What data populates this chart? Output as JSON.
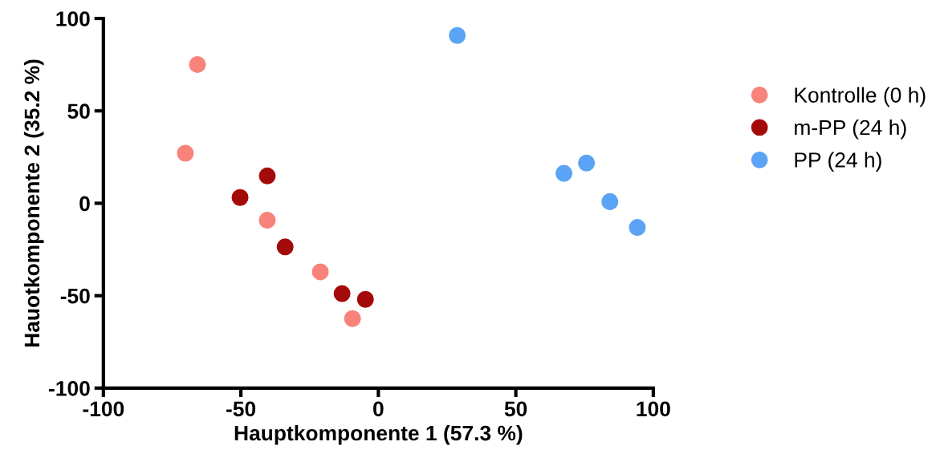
{
  "chart_data": {
    "type": "scatter",
    "xlabel": "Hauptkomponente 1 (57.3 %)",
    "ylabel": "Hauotkomponente 2 (35.2 %)",
    "xlim": [
      -100,
      100
    ],
    "ylim": [
      -100,
      100
    ],
    "xticks": [
      -100,
      -50,
      0,
      50,
      100
    ],
    "yticks": [
      -100,
      -50,
      0,
      50,
      100
    ],
    "grid": false,
    "legend": "right",
    "marker": "circle",
    "series": [
      {
        "name": "Kontrolle (0 h)",
        "color": "#f8837b",
        "x": [
          -65.8,
          -70.2,
          -40.4,
          -21.1,
          -9.4
        ],
        "values": [
          75.1,
          27.1,
          -9.2,
          -37.1,
          -62.4
        ]
      },
      {
        "name": "m-PP (24 h)",
        "color": "#a50a0a",
        "x": [
          -40.4,
          -50.3,
          -33.9,
          -13.2,
          -4.7
        ],
        "values": [
          14.8,
          3.1,
          -23.6,
          -48.9,
          -52.0
        ]
      },
      {
        "name": "PP (24 h)",
        "color": "#5ba3f5",
        "x": [
          28.7,
          67.5,
          75.7,
          84.2,
          94.2
        ],
        "values": [
          90.8,
          16.2,
          21.8,
          0.9,
          -13.1
        ]
      }
    ]
  }
}
